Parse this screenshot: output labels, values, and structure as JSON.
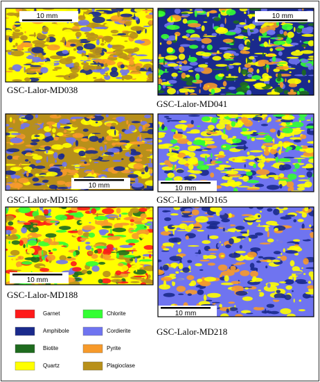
{
  "panels": [
    {
      "label": "GSC-Lalor-MD038",
      "scale_bar": "10 mm"
    },
    {
      "label": "GSC-Lalor-MD041",
      "scale_bar": "10 mm"
    },
    {
      "label": "GSC-Lalor-MD156",
      "scale_bar": "10 mm"
    },
    {
      "label": "GSC-Lalor-MD165",
      "scale_bar": "10 mm"
    },
    {
      "label": "GSC-Lalor-MD188",
      "scale_bar": "10 mm"
    },
    {
      "label": "GSC-Lalor-MD218",
      "scale_bar": "10 mm"
    }
  ],
  "legend": [
    {
      "name": "Garnet",
      "color": "#ff1a1a"
    },
    {
      "name": "Amphibole",
      "color": "#1a2a8c"
    },
    {
      "name": "Biotite",
      "color": "#1e6b1e"
    },
    {
      "name": "Quartz",
      "color": "#ffff00"
    },
    {
      "name": "Chlorite",
      "color": "#33ff33"
    },
    {
      "name": "Cordierite",
      "color": "#6f74f0"
    },
    {
      "name": "Pyrite",
      "color": "#f79a2a"
    },
    {
      "name": "Plagioclase",
      "color": "#b8901a"
    }
  ]
}
